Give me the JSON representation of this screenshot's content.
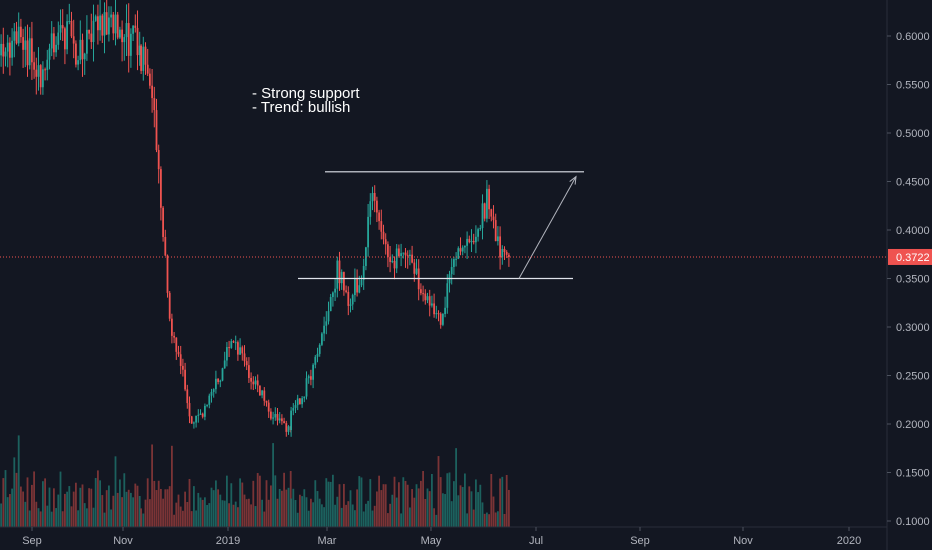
{
  "chart_data": {
    "type": "candlestick",
    "symbol_hint": "",
    "annotations": [
      "- Strong support",
      "- Trend: bullish"
    ],
    "x_tick_labels": [
      "Sep",
      "Nov",
      "2019",
      "Mar",
      "May",
      "Jul",
      "Sep",
      "Nov",
      "2020"
    ],
    "y_tick_labels": [
      "0.6000",
      "0.5500",
      "0.5000",
      "0.4500",
      "0.4000",
      "0.3500",
      "0.3000",
      "0.2500",
      "0.2000",
      "0.1500",
      "0.1000"
    ],
    "y_ticks": [
      0.6,
      0.55,
      0.5,
      0.45,
      0.4,
      0.35,
      0.3,
      0.25,
      0.2,
      0.15,
      0.1
    ],
    "ylim": [
      0.093,
      0.64
    ],
    "last_price": 0.3722,
    "last_price_label": "0.3722",
    "resistance_level": 0.46,
    "support_level": 0.35,
    "projection": {
      "from": 0.35,
      "to": 0.455
    },
    "price_path_anchors": [
      [
        0.58,
        0.6,
        0.56,
        0.61,
        0.58,
        0.62,
        0.6,
        0.59
      ],
      [
        0.58,
        0.55,
        0.42,
        0.3,
        0.26,
        0.2,
        0.21,
        0.23,
        0.25,
        0.29,
        0.27,
        0.25,
        0.23,
        0.21,
        0.2,
        0.19
      ],
      [
        0.21,
        0.23,
        0.26,
        0.3,
        0.36,
        0.33,
        0.35,
        0.43,
        0.39,
        0.37,
        0.38,
        0.35,
        0.33,
        0.31,
        0.36,
        0.39,
        0.4,
        0.43,
        0.38,
        0.37
      ]
    ],
    "colors": {
      "background": "#131722",
      "up": "#26a69a",
      "down": "#ef5350",
      "volume_up": "#1f6e68",
      "volume_down": "#8e3a3a",
      "levels": "#e0e3eb",
      "last_price_line": "#ef5350",
      "axis_text": "#b2b5be"
    },
    "grid": false
  }
}
